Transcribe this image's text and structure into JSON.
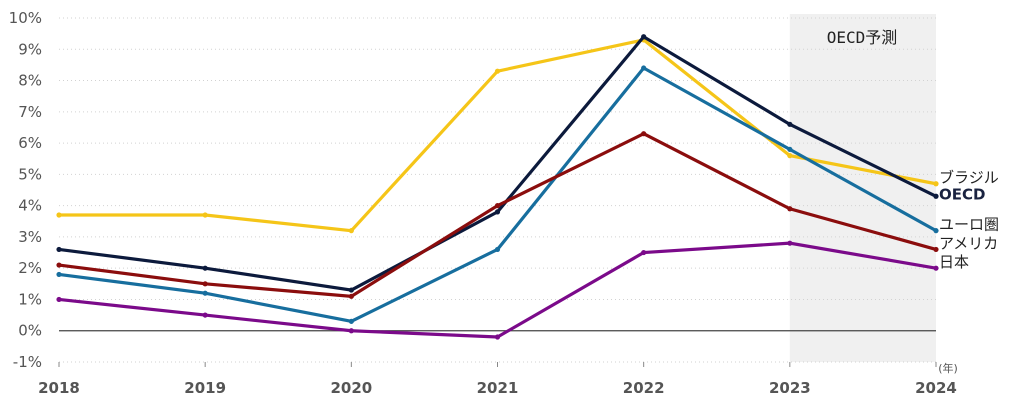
{
  "chart_data": {
    "type": "line",
    "x": [
      "2018",
      "2019",
      "2020",
      "2021",
      "2022",
      "2023",
      "2024"
    ],
    "x_unit": "(年)",
    "yticks": [
      "-1%",
      "0%",
      "1%",
      "2%",
      "3%",
      "4%",
      "5%",
      "6%",
      "7%",
      "8%",
      "9%",
      "10%"
    ],
    "ylim": [
      -1,
      10
    ],
    "forecast": {
      "label": "OECD予測",
      "from": "2023",
      "to": "2024",
      "color": "#f0f0f0"
    },
    "series": [
      {
        "name": "ブラジル",
        "color": "#f5c518",
        "bold": false,
        "values": [
          3.7,
          3.7,
          3.2,
          8.3,
          9.3,
          5.6,
          4.7
        ]
      },
      {
        "name": "OECD",
        "color": "#0c1a3c",
        "bold": true,
        "values": [
          2.6,
          2.0,
          1.3,
          3.8,
          9.4,
          6.6,
          4.3
        ]
      },
      {
        "name": "ユーロ圏",
        "color": "#176e9e",
        "bold": false,
        "values": [
          1.8,
          1.2,
          0.3,
          2.6,
          8.4,
          5.8,
          3.2
        ]
      },
      {
        "name": "アメリカ",
        "color": "#8b0d0d",
        "bold": false,
        "values": [
          2.1,
          1.5,
          1.1,
          4.0,
          6.3,
          3.9,
          2.6
        ]
      },
      {
        "name": "日本",
        "color": "#7b0a8a",
        "bold": false,
        "values": [
          1.0,
          0.5,
          0.0,
          -0.2,
          2.5,
          2.8,
          2.0
        ]
      }
    ],
    "grid": true,
    "legend": "end-of-line"
  }
}
